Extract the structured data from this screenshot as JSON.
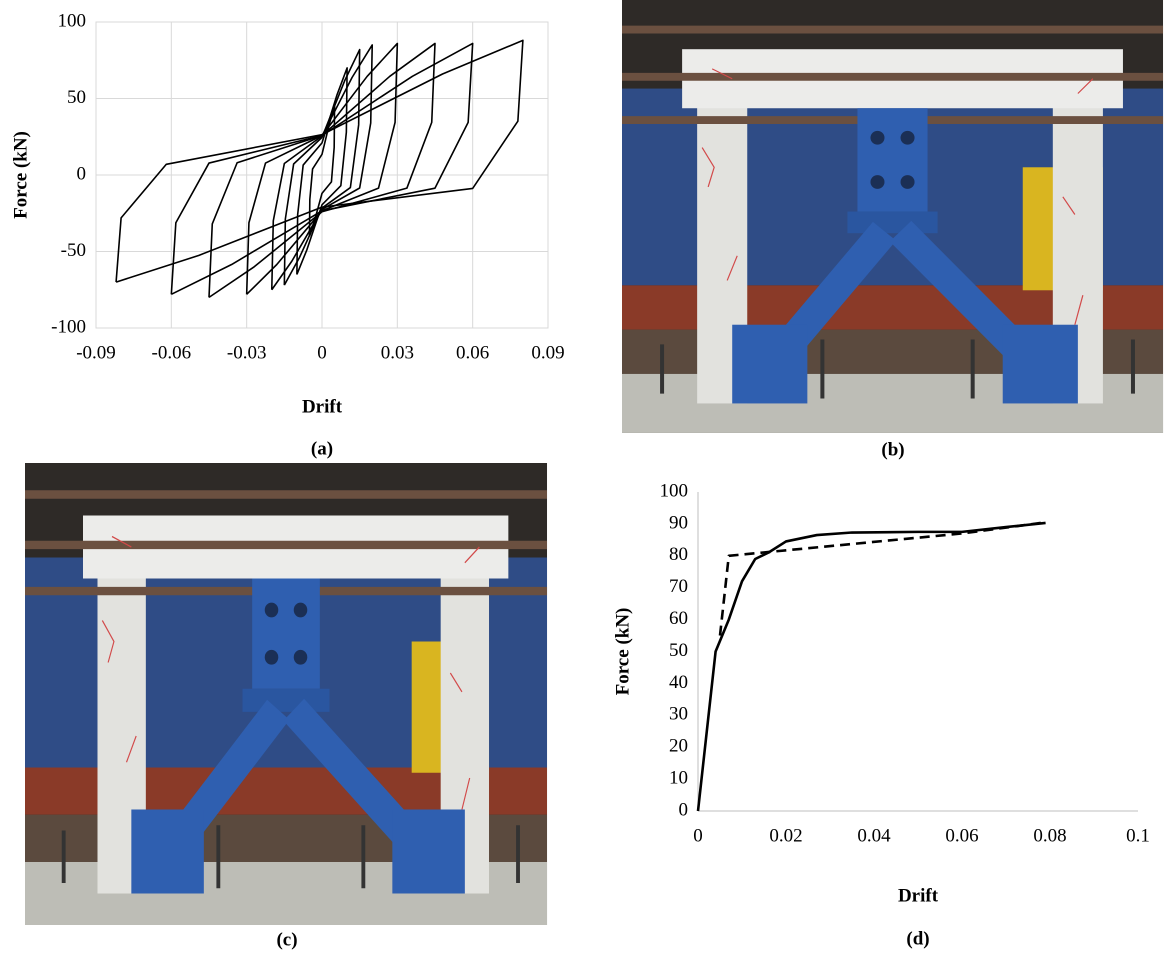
{
  "chart_data": [
    {
      "type": "line",
      "caption": "(a)",
      "xlabel": "Drift",
      "ylabel": "Force (kN)",
      "xlim": [
        -0.09,
        0.09
      ],
      "xticks": [
        -0.09,
        -0.06,
        -0.03,
        0,
        0.03,
        0.06,
        0.09
      ],
      "ylim": [
        -100,
        100
      ],
      "yticks": [
        -100,
        -50,
        0,
        50,
        100
      ],
      "grid": true,
      "series": [
        {
          "color": "#000000",
          "x": [
            -0.005,
            -0.00485,
            -0.00375,
            0,
            0.003,
            0.005,
            0.00485,
            0.00375,
            0,
            -0.003,
            -0.005
          ],
          "values": [
            -40,
            -16,
            4,
            13.5,
            33.8,
            45,
            18,
            -4.5,
            -12,
            -30,
            -40
          ]
        },
        {
          "color": "#000000",
          "x": [
            -0.01,
            -0.0097,
            -0.0075,
            0,
            0.006,
            0.01,
            0.0097,
            0.0075,
            0,
            -0.006,
            -0.01
          ],
          "values": [
            -65,
            -26,
            6.5,
            21,
            52.5,
            70,
            28,
            -7,
            -19.5,
            -48.8,
            -65
          ]
        },
        {
          "color": "#000000",
          "x": [
            -0.015,
            -0.0146,
            -0.0113,
            0,
            0.009,
            0.015,
            0.0146,
            0.0113,
            0,
            -0.009,
            -0.015
          ],
          "values": [
            -72,
            -28.8,
            7.2,
            24.6,
            61.5,
            82,
            32.8,
            -8.2,
            -21.6,
            -54,
            -72
          ]
        },
        {
          "color": "#000000",
          "x": [
            -0.02,
            -0.0194,
            -0.015,
            0,
            0.012,
            0.02,
            0.0194,
            0.015,
            0,
            -0.012,
            -0.02
          ],
          "values": [
            -75,
            -30,
            7.5,
            25.5,
            63.8,
            85,
            34,
            -8.5,
            -22.5,
            -56.3,
            -75
          ]
        },
        {
          "color": "#000000",
          "x": [
            -0.03,
            -0.0291,
            -0.0225,
            0,
            0.018,
            0.03,
            0.0291,
            0.0225,
            0,
            -0.018,
            -0.03
          ],
          "values": [
            -78,
            -31.2,
            7.8,
            25.8,
            64.5,
            86,
            34.4,
            -8.6,
            -23.4,
            -58.5,
            -78
          ]
        },
        {
          "color": "#000000",
          "x": [
            -0.045,
            -0.0437,
            -0.0338,
            0,
            0.027,
            0.045,
            0.0437,
            0.0338,
            0,
            -0.027,
            -0.045
          ],
          "values": [
            -80,
            -32,
            8,
            25.8,
            64.5,
            86,
            34.4,
            -8.6,
            -24,
            -60,
            -80
          ]
        },
        {
          "color": "#000000",
          "x": [
            -0.06,
            -0.0582,
            -0.045,
            0,
            0.036,
            0.06,
            0.0582,
            0.045,
            0,
            -0.036,
            -0.06
          ],
          "values": [
            -78,
            -31.2,
            7.8,
            25.8,
            64.5,
            86,
            34.4,
            -8.6,
            -23.4,
            -58.5,
            -78
          ]
        },
        {
          "color": "#000000",
          "x": [
            -0.082,
            -0.08,
            -0.062,
            0,
            0.048,
            0.08,
            0.078,
            0.06,
            0,
            -0.049,
            -0.082
          ],
          "values": [
            -70,
            -28,
            7,
            26.4,
            66,
            88,
            35.2,
            -8.8,
            -21,
            -52.5,
            -70
          ]
        }
      ]
    },
    {
      "type": "line",
      "caption": "(d)",
      "xlabel": "Drift",
      "ylabel": "Force (kN)",
      "xlim": [
        0,
        0.1
      ],
      "xticks": [
        0,
        0.02,
        0.04,
        0.06,
        0.08,
        0.1
      ],
      "ylim": [
        0,
        100
      ],
      "yticks": [
        0,
        10,
        20,
        30,
        40,
        50,
        60,
        70,
        80,
        90,
        100
      ],
      "grid": false,
      "series": [
        {
          "color": "#000000",
          "dash": false,
          "x": [
            0,
            0.004,
            0.007,
            0.01,
            0.013,
            0.016,
            0.02,
            0.027,
            0.035,
            0.05,
            0.06,
            0.07,
            0.079
          ],
          "values": [
            0,
            50,
            60,
            72,
            79,
            81,
            84.5,
            86.5,
            87.3,
            87.5,
            87.5,
            89,
            90.3
          ]
        },
        {
          "color": "#000000",
          "dash": true,
          "x": [
            0.005,
            0.007,
            0.06,
            0.079
          ],
          "values": [
            55,
            80,
            87,
            90.5
          ]
        }
      ]
    }
  ],
  "photos": [
    {
      "caption": "(b)"
    },
    {
      "caption": "(c)"
    }
  ]
}
